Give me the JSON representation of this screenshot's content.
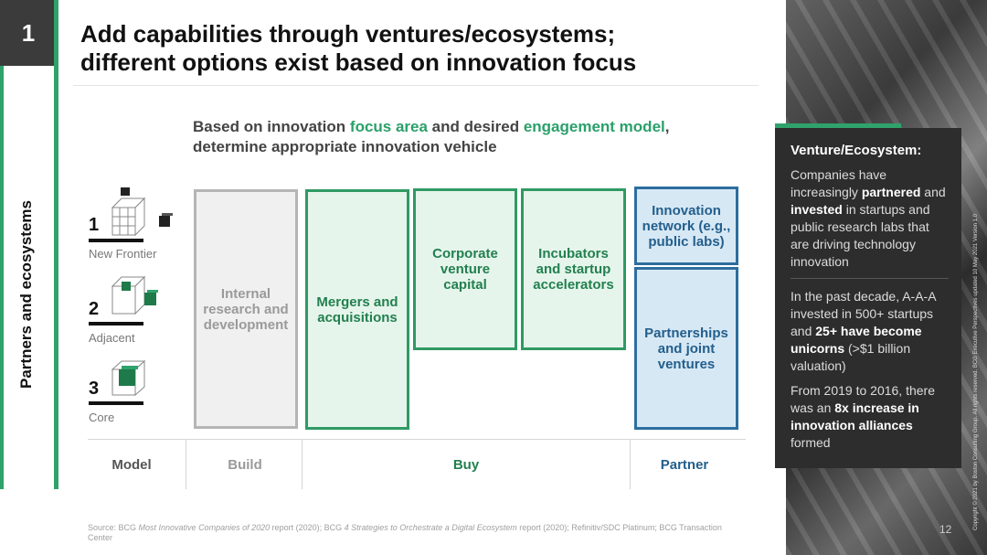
{
  "slide_number": "1",
  "section_label": "Partners and ecosystems",
  "title_line1": "Add capabilities through ventures/ecosystems;",
  "title_line2": "different options exist based on innovation focus",
  "intro": {
    "part1": "Based on innovation ",
    "focus": "focus area",
    "part2": " and desired ",
    "engagement": "engagement model",
    "part3": ",",
    "line2": "determine appropriate innovation vehicle"
  },
  "levels": [
    {
      "num": "1",
      "label": "New Frontier"
    },
    {
      "num": "2",
      "label": "Adjacent"
    },
    {
      "num": "3",
      "label": "Core"
    }
  ],
  "columns": {
    "internal": "Internal research and development",
    "mergers": "Mergers and acquisitions",
    "corporate": "Corporate venture capital",
    "incubators": "Incubators and startup accelerators",
    "network": "Innovation network (e.g., public labs)",
    "partnerships": "Partnerships and joint ventures"
  },
  "model_row": {
    "model": "Model",
    "build": "Build",
    "buy": "Buy",
    "partner": "Partner"
  },
  "source": {
    "prefix": "Source: BCG ",
    "report1": "Most Innovative Companies of 2020",
    "mid": " report (2020); BCG ",
    "report2": "4 Strategies to Orchestrate a Digital Ecosystem",
    "suffix": " report (2020); Refinitiv/SDC Platinum; BCG Transaction Center"
  },
  "page_number": "12",
  "panel": {
    "title": "Venture/Ecosystem:",
    "p1_a": "Companies have increasingly ",
    "p1_b": "partnered",
    "p1_c": " and ",
    "p1_d": "invested",
    "p1_e": " in startups and public research labs that are driving technology innovation",
    "p2_a": "In the past decade, A-A-A invested in 500+ startups and ",
    "p2_b": "25+ have become unicorns",
    "p2_c": " (>$1 billion valuation)",
    "p3_a": "From 2019 to 2016, there was an ",
    "p3_b": "8x increase in innovation alliances",
    "p3_c": " formed"
  },
  "copyright": "Copyright © 2021 by Boston Consulting Group. All rights reserved. BCG Executive Perspectives updated 10 May 2021 Version 1.0",
  "colors": {
    "green": "#2fa36b",
    "blue": "#2d6e9e",
    "gray": "#b5b5b5"
  }
}
